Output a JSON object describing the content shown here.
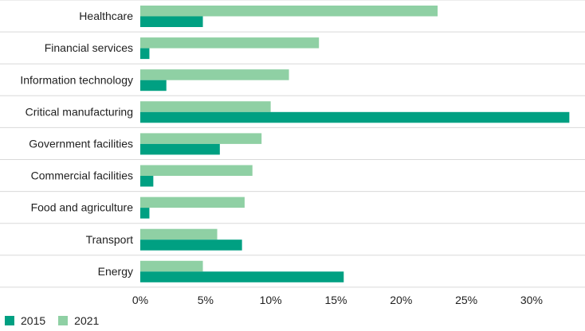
{
  "chart_data": {
    "type": "bar",
    "orientation": "horizontal",
    "categories": [
      "Healthcare",
      "Financial services",
      "Information technology",
      "Critical manufacturing",
      "Government facilities",
      "Commercial facilities",
      "Food and agriculture",
      "Transport",
      "Energy"
    ],
    "series": [
      {
        "name": "2015",
        "color": "#00a082",
        "values": [
          4.8,
          0.7,
          2.0,
          32.9,
          6.1,
          1.0,
          0.7,
          7.8,
          15.6
        ]
      },
      {
        "name": "2021",
        "color": "#8fd0a4",
        "values": [
          22.8,
          13.7,
          11.4,
          10.0,
          9.3,
          8.6,
          8.0,
          5.9,
          4.8
        ]
      }
    ],
    "xlim": [
      0,
      33
    ],
    "xticks": [
      0,
      5,
      10,
      15,
      20,
      25,
      30
    ],
    "xtick_labels": [
      "0%",
      "5%",
      "10%",
      "15%",
      "20%",
      "25%",
      "30%"
    ],
    "grid": {
      "horizontal": true,
      "vertical": false,
      "color": "#d9d9d9"
    },
    "legend_position": "bottom-left",
    "title": "",
    "xlabel": "",
    "ylabel": ""
  },
  "legend": {
    "items": [
      {
        "label": "2015",
        "color": "#00a082"
      },
      {
        "label": "2021",
        "color": "#8fd0a4"
      }
    ]
  }
}
